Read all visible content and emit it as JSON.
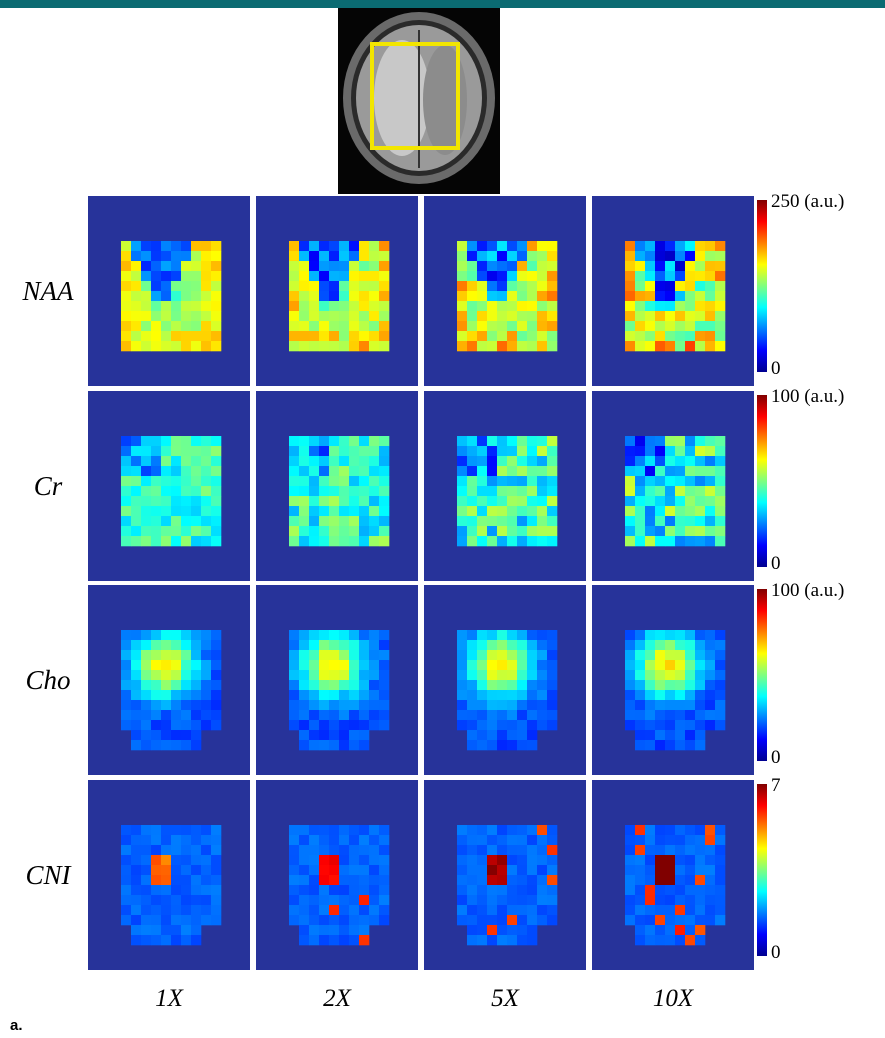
{
  "figure": {
    "rows": [
      {
        "label": "NAA",
        "colorbar_max": "250 (a.u.)",
        "colorbar_min": "0"
      },
      {
        "label": "Cr",
        "colorbar_max": "100 (a.u.)",
        "colorbar_min": "0"
      },
      {
        "label": "Cho",
        "colorbar_max": "100 (a.u.)",
        "colorbar_min": "0"
      },
      {
        "label": "CNI",
        "colorbar_max": "7",
        "colorbar_min": "0"
      }
    ],
    "columns": [
      "1X",
      "2X",
      "5X",
      "10X"
    ],
    "caption": "a."
  }
}
